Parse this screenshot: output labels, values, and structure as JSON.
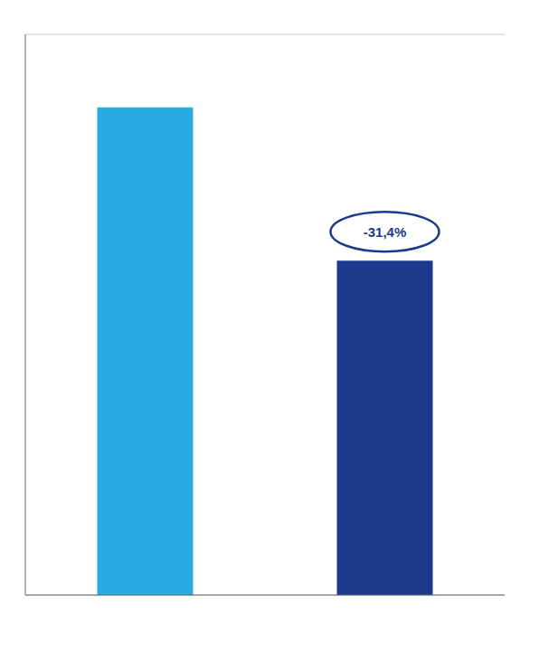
{
  "chart_data": {
    "type": "bar",
    "categories": [
      null,
      null
    ],
    "values": [
      100,
      68.6
    ],
    "colors": [
      "#29ABE2",
      "#1B3A8C"
    ],
    "ylim": [
      0,
      115
    ],
    "yticks": [
      0,
      14.3,
      28.6,
      42.9,
      57.1,
      71.4,
      85.7,
      100,
      114.3
    ],
    "grid": true,
    "tick_labels": false,
    "annotation": "-31,4%"
  }
}
